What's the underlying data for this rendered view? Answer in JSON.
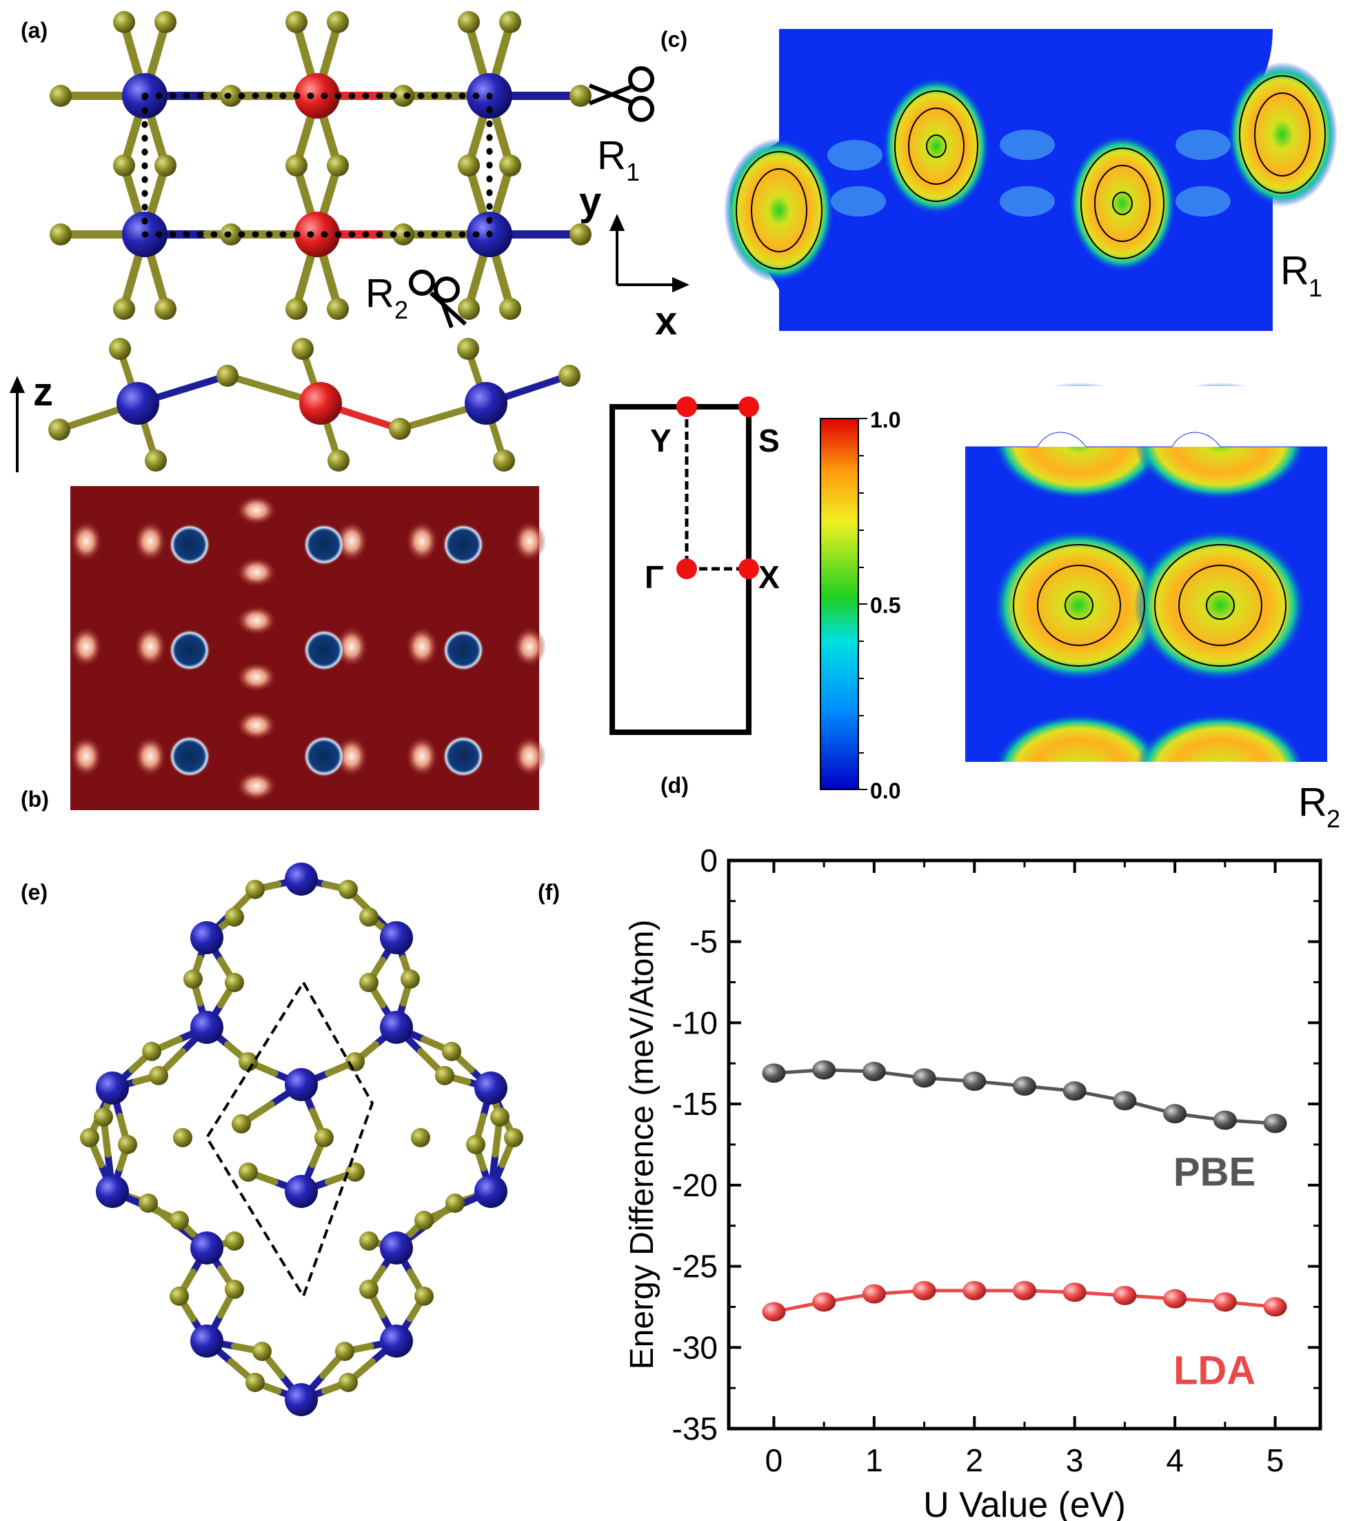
{
  "figure": {
    "panel_labels": {
      "a": "(a)",
      "b": "(b)",
      "c": "(c)",
      "d": "(d)",
      "e": "(e)",
      "f": "(f)"
    },
    "axes_labels": {
      "x": "x",
      "y": "y",
      "z": "z"
    },
    "cut_labels": {
      "r1": "R",
      "r1_sub": "1",
      "r2": "R",
      "r2_sub": "2"
    },
    "bz_points": {
      "gamma": "Γ",
      "x": "X",
      "y": "Y",
      "s": "S"
    },
    "colorbar": {
      "max": "1.0",
      "mid": "0.5",
      "min": "0.0"
    },
    "colors": {
      "metal_blue": "#1e1e9a",
      "metal_red": "#e22a2a",
      "ligand": "#8a8a2a",
      "map_red": "#7c0f14",
      "elf_blue": "#0c2ef0"
    }
  },
  "chart_data": {
    "type": "scatter",
    "xlabel": "U Value (eV)",
    "ylabel": "Energy Difference (meV/Atom)",
    "xlim": [
      -0.45,
      5.45
    ],
    "ylim": [
      -35,
      0
    ],
    "xticks": [
      "0",
      "1",
      "2",
      "3",
      "4",
      "5"
    ],
    "yticks": [
      "0",
      "-5",
      "-10",
      "-15",
      "-20",
      "-25",
      "-30",
      "-35"
    ],
    "x": [
      0,
      0.5,
      1,
      1.5,
      2,
      2.5,
      3,
      3.5,
      4,
      4.5,
      5
    ],
    "series": [
      {
        "name": "PBE",
        "color": "#555555",
        "values": [
          -13.1,
          -12.9,
          -13.0,
          -13.4,
          -13.6,
          -13.9,
          -14.2,
          -14.8,
          -15.6,
          -16.0,
          -16.2
        ]
      },
      {
        "name": "LDA",
        "color": "#e84a4a",
        "values": [
          -27.8,
          -27.2,
          -26.7,
          -26.5,
          -26.5,
          -26.5,
          -26.6,
          -26.8,
          -27.0,
          -27.2,
          -27.5
        ]
      }
    ]
  }
}
